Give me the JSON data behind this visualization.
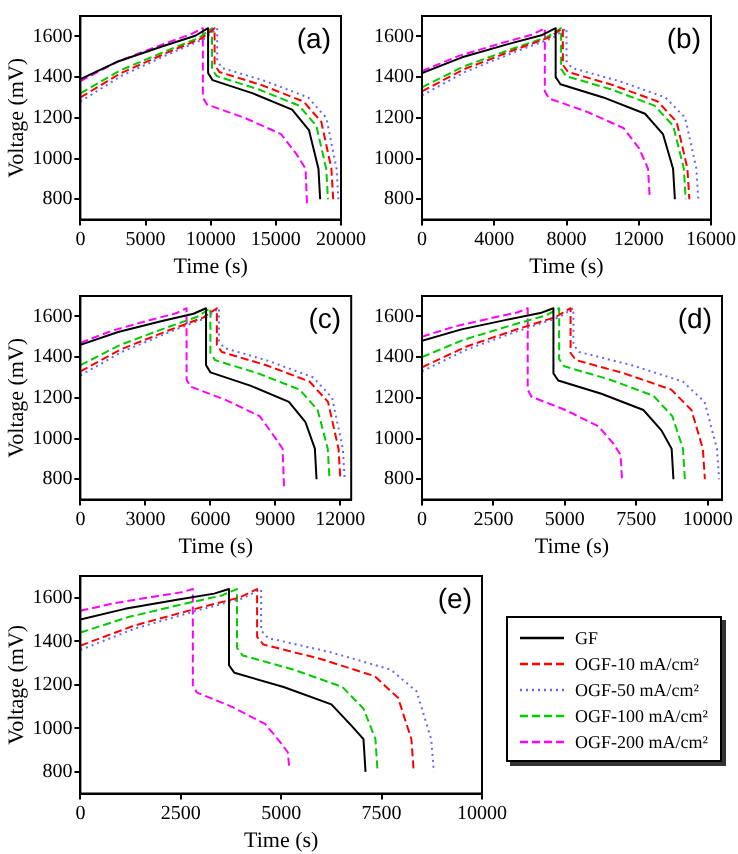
{
  "chart_data": [
    {
      "type": "line",
      "xlabel": "Time (s)",
      "ylabel": "Voltage (mV)",
      "annotations": [
        "(a)"
      ],
      "marker": "none",
      "grid": false,
      "xlim": [
        0,
        20000
      ],
      "xticks": [
        0,
        5000,
        10000,
        15000,
        20000
      ],
      "ylim": [
        700,
        1700
      ],
      "yticks": [
        800,
        1000,
        1200,
        1400,
        1600
      ],
      "series": [
        {
          "color": "#000000",
          "line_style": "solid",
          "x": [
            0,
            2940,
            6370,
            8820,
            9800,
            9800,
            10144,
            13240,
            16250,
            17540,
            18271,
            18400
          ],
          "values": [
            1390,
            1478,
            1553,
            1603,
            1640,
            1420,
            1385,
            1320,
            1240,
            1140,
            950,
            800
          ]
        },
        {
          "color": "#ff0000",
          "line_style": "dashed",
          "x": [
            0,
            3090,
            6695,
            9270,
            10300,
            10300,
            10664,
            13940,
            17125,
            18490,
            19264,
            19400
          ],
          "values": [
            1300,
            1419,
            1521,
            1589,
            1640,
            1460,
            1425,
            1360,
            1280,
            1180,
            950,
            800
          ]
        },
        {
          "color": "#6666ff",
          "line_style": "dotted",
          "x": [
            0,
            3150,
            6825,
            9450,
            10500,
            10500,
            10872,
            14220,
            17475,
            18870,
            19661,
            19800
          ],
          "values": [
            1280,
            1406,
            1514,
            1586,
            1640,
            1480,
            1445,
            1380,
            1300,
            1200,
            950,
            800
          ]
        },
        {
          "color": "#00cc00",
          "line_style": "dashed",
          "x": [
            0,
            3030,
            6565,
            9090,
            10100,
            10100,
            10456,
            13660,
            16775,
            18110,
            18867,
            19000
          ],
          "values": [
            1320,
            1432,
            1528,
            1592,
            1640,
            1440,
            1405,
            1340,
            1260,
            1160,
            950,
            800
          ]
        },
        {
          "color": "#ff00ff",
          "line_style": "dashed",
          "x": [
            0,
            2820,
            6110,
            8460,
            9400,
            9400,
            9720,
            12600,
            15400,
            16600,
            17280,
            17400
          ],
          "values": [
            1380,
            1475,
            1556,
            1610,
            1640,
            1300,
            1265,
            1200,
            1120,
            1020,
            950,
            760
          ]
        }
      ]
    },
    {
      "type": "line",
      "xlabel": "Time (s)",
      "annotations": [
        "(b)"
      ],
      "marker": "none",
      "grid": false,
      "xlim": [
        0,
        16000
      ],
      "xticks": [
        0,
        4000,
        8000,
        12000,
        16000
      ],
      "ylim": [
        700,
        1700
      ],
      "yticks": [
        800,
        1000,
        1200,
        1400,
        1600
      ],
      "series": [
        {
          "color": "#000000",
          "line_style": "solid",
          "x": [
            0,
            2220,
            4810,
            6660,
            7400,
            7400,
            7664,
            10040,
            12350,
            13340,
            13901,
            14000
          ],
          "values": [
            1420,
            1497,
            1563,
            1607,
            1640,
            1400,
            1365,
            1300,
            1220,
            1120,
            950,
            800
          ]
        },
        {
          "color": "#ff0000",
          "line_style": "dashed",
          "x": [
            0,
            2340,
            5070,
            7020,
            7800,
            7800,
            8080,
            10600,
            13050,
            14100,
            14695,
            14800
          ],
          "values": [
            1330,
            1439,
            1532,
            1594,
            1640,
            1460,
            1425,
            1360,
            1280,
            1180,
            950,
            800
          ]
        },
        {
          "color": "#6666ff",
          "line_style": "dotted",
          "x": [
            0,
            2400,
            5200,
            7200,
            8000,
            8000,
            8292,
            10920,
            13475,
            14570,
            15191,
            15300
          ],
          "values": [
            1310,
            1426,
            1525,
            1591,
            1640,
            1480,
            1445,
            1380,
            1300,
            1200,
            950,
            800
          ]
        },
        {
          "color": "#00cc00",
          "line_style": "dashed",
          "x": [
            0,
            2310,
            5005,
            6930,
            7700,
            7700,
            7976,
            10460,
            12875,
            13910,
            14497,
            14600
          ],
          "values": [
            1350,
            1452,
            1539,
            1597,
            1640,
            1440,
            1405,
            1340,
            1260,
            1160,
            950,
            800
          ]
        },
        {
          "color": "#ff00ff",
          "line_style": "dashed",
          "x": [
            0,
            2040,
            4420,
            6120,
            6800,
            6800,
            7032,
            9120,
            11150,
            12020,
            12513,
            12600
          ],
          "values": [
            1430,
            1504,
            1567,
            1609,
            1640,
            1330,
            1295,
            1230,
            1150,
            1050,
            950,
            820
          ]
        }
      ]
    },
    {
      "type": "line",
      "xlabel": "Time (s)",
      "ylabel": "Voltage (mV)",
      "annotations": [
        "(c)"
      ],
      "marker": "none",
      "grid": false,
      "xlim": [
        0,
        12500
      ],
      "xticks": [
        0,
        3000,
        6000,
        9000,
        12000
      ],
      "ylim": [
        700,
        1700
      ],
      "yticks": [
        800,
        1000,
        1200,
        1400,
        1600
      ],
      "series": [
        {
          "color": "#000000",
          "line_style": "solid",
          "x": [
            0,
            1740,
            3770,
            5220,
            5800,
            5800,
            6004,
            7840,
            9625,
            10390,
            10824,
            10900
          ],
          "values": [
            1460,
            1523,
            1577,
            1613,
            1640,
            1360,
            1325,
            1260,
            1180,
            1080,
            950,
            800
          ]
        },
        {
          "color": "#ff0000",
          "line_style": "dashed",
          "x": [
            0,
            1890,
            4095,
            5670,
            6300,
            6300,
            6528,
            8580,
            10575,
            11430,
            11915,
            12000
          ],
          "values": [
            1330,
            1439,
            1532,
            1594,
            1640,
            1460,
            1425,
            1360,
            1280,
            1180,
            950,
            800
          ]
        },
        {
          "color": "#6666ff",
          "line_style": "dotted",
          "x": [
            0,
            1920,
            4160,
            5760,
            6400,
            6400,
            6632,
            8720,
            10750,
            11620,
            12113,
            12200
          ],
          "values": [
            1310,
            1426,
            1525,
            1591,
            1640,
            1480,
            1445,
            1380,
            1300,
            1200,
            950,
            800
          ]
        },
        {
          "color": "#00cc00",
          "line_style": "dashed",
          "x": [
            0,
            1800,
            3900,
            5400,
            6000,
            6000,
            6220,
            8200,
            10125,
            10950,
            11418,
            11500
          ],
          "values": [
            1360,
            1458,
            1542,
            1598,
            1640,
            1420,
            1385,
            1320,
            1240,
            1140,
            950,
            800
          ]
        },
        {
          "color": "#ff00ff",
          "line_style": "dashed",
          "x": [
            0,
            1470,
            3185,
            4410,
            4900,
            4900,
            5080,
            6700,
            8275,
            8950,
            9333,
            9400
          ],
          "values": [
            1470,
            1530,
            1581,
            1615,
            1640,
            1290,
            1255,
            1190,
            1110,
            1010,
            950,
            760
          ]
        }
      ]
    },
    {
      "type": "line",
      "xlabel": "Time (s)",
      "annotations": [
        "(d)"
      ],
      "marker": "none",
      "grid": false,
      "xlim": [
        0,
        10500
      ],
      "xticks": [
        0,
        2500,
        5000,
        7500,
        10000
      ],
      "ylim": [
        700,
        1700
      ],
      "yticks": [
        800,
        1000,
        1200,
        1400,
        1600
      ],
      "series": [
        {
          "color": "#000000",
          "line_style": "solid",
          "x": [
            0,
            1380,
            2990,
            4140,
            4600,
            4600,
            4768,
            6280,
            7750,
            8380,
            8737,
            8800
          ],
          "values": [
            1480,
            1536,
            1584,
            1616,
            1640,
            1320,
            1285,
            1220,
            1140,
            1040,
            950,
            800
          ]
        },
        {
          "color": "#ff0000",
          "line_style": "dashed",
          "x": [
            0,
            1560,
            3380,
            4680,
            5200,
            5200,
            5388,
            7080,
            8725,
            9430,
            9830,
            9900
          ],
          "values": [
            1350,
            1452,
            1539,
            1597,
            1640,
            1420,
            1385,
            1320,
            1240,
            1140,
            950,
            800
          ]
        },
        {
          "color": "#6666ff",
          "line_style": "dotted",
          "x": [
            0,
            1590,
            3445,
            4770,
            5300,
            5300,
            5504,
            7340,
            9125,
            9890,
            10324,
            10400
          ],
          "values": [
            1330,
            1439,
            1532,
            1594,
            1640,
            1460,
            1425,
            1360,
            1280,
            1180,
            950,
            800
          ]
        },
        {
          "color": "#00cc00",
          "line_style": "dashed",
          "x": [
            0,
            1440,
            3120,
            4320,
            4800,
            4800,
            4976,
            6560,
            8100,
            8760,
            9134,
            9200
          ],
          "values": [
            1400,
            1484,
            1556,
            1604,
            1640,
            1390,
            1355,
            1290,
            1210,
            1110,
            950,
            800
          ]
        },
        {
          "color": "#ff00ff",
          "line_style": "dashed",
          "x": [
            0,
            1110,
            2405,
            3330,
            3700,
            3700,
            3832,
            5020,
            6175,
            6670,
            6951,
            7000
          ],
          "values": [
            1500,
            1549,
            1591,
            1619,
            1640,
            1240,
            1205,
            1140,
            1060,
            980,
            920,
            800
          ]
        }
      ]
    },
    {
      "type": "line",
      "xlabel": "Time (s)",
      "ylabel": "Voltage (mV)",
      "annotations": [
        "(e)"
      ],
      "marker": "none",
      "grid": false,
      "legend": "right",
      "xlim": [
        0,
        10000
      ],
      "xticks": [
        0,
        2500,
        5000,
        7500,
        10000
      ],
      "ylim": [
        700,
        1700
      ],
      "yticks": [
        800,
        1000,
        1200,
        1400,
        1600
      ],
      "series": [
        {
          "name": "GF",
          "color": "#000000",
          "line_style": "solid",
          "x": [
            0,
            1110,
            2405,
            3330,
            3700,
            3700,
            3836,
            5060,
            6250,
            6760,
            7049,
            7100
          ],
          "values": [
            1500,
            1549,
            1591,
            1619,
            1640,
            1290,
            1255,
            1190,
            1110,
            1010,
            950,
            800
          ]
        },
        {
          "name": "OGF-10 mA/cm²",
          "color": "#ff0000",
          "line_style": "dashed",
          "x": [
            0,
            1320,
            2860,
            3960,
            4400,
            4400,
            4556,
            5960,
            7325,
            7910,
            8242,
            8300
          ],
          "values": [
            1380,
            1471,
            1549,
            1601,
            1640,
            1420,
            1385,
            1320,
            1240,
            1140,
            950,
            800
          ]
        },
        {
          "name": "OGF-50 mA/cm²",
          "color": "#6666ff",
          "line_style": "dotted",
          "x": [
            0,
            1350,
            2925,
            4050,
            4500,
            4500,
            4672,
            6220,
            7725,
            8370,
            8736,
            8800
          ],
          "values": [
            1360,
            1458,
            1542,
            1598,
            1640,
            1450,
            1415,
            1350,
            1270,
            1170,
            950,
            800
          ]
        },
        {
          "name": "OGF-100 mA/cm²",
          "color": "#00cc00",
          "line_style": "dashed",
          "x": [
            0,
            1170,
            2535,
            3510,
            3900,
            3900,
            4040,
            5300,
            6525,
            7050,
            7347,
            7400
          ],
          "values": [
            1440,
            1510,
            1570,
            1610,
            1640,
            1370,
            1335,
            1270,
            1190,
            1090,
            950,
            800
          ]
        },
        {
          "name": "OGF-200 mA/cm²",
          "color": "#ff00ff",
          "line_style": "dashed",
          "x": [
            0,
            840,
            1820,
            2520,
            2800,
            2800,
            2896,
            3760,
            4600,
            4960,
            5164,
            5200
          ],
          "values": [
            1540,
            1575,
            1605,
            1625,
            1640,
            1200,
            1165,
            1100,
            1020,
            940,
            890,
            820
          ]
        }
      ]
    }
  ]
}
